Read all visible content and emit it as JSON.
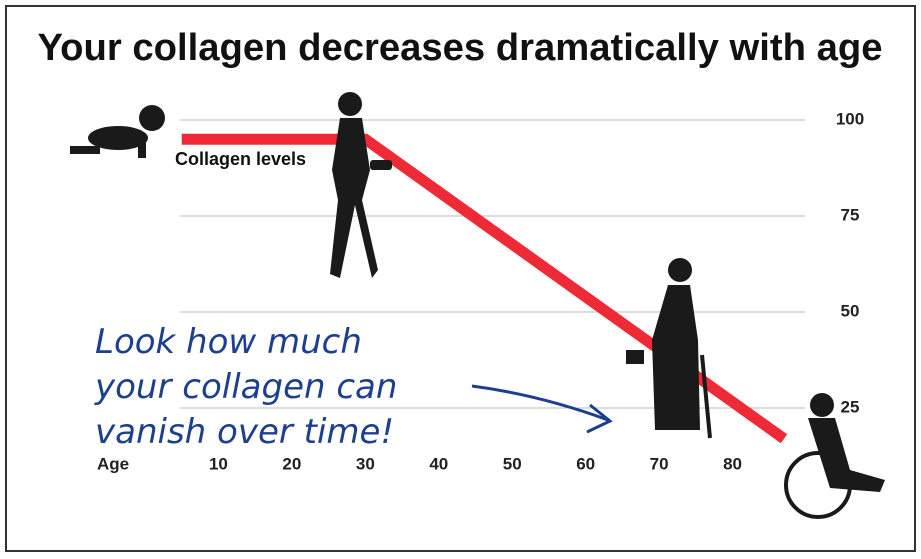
{
  "chart_data": {
    "type": "line",
    "title": "Your collagen decreases dramatically with age",
    "x_label": "Age",
    "x": [
      5,
      30,
      87
    ],
    "series": [
      {
        "name": "Collagen levels",
        "color": "#ee2a36",
        "values": [
          95,
          95,
          17
        ]
      }
    ],
    "xlim": [
      0,
      90
    ],
    "xticks": [
      10,
      20,
      30,
      40,
      50,
      60,
      70,
      80
    ],
    "ylim": [
      0,
      100
    ],
    "yticks": [
      25,
      50,
      75,
      100
    ],
    "grid": true,
    "annotation": [
      "Look how much",
      "your collagen can",
      "vanish over time!"
    ]
  }
}
